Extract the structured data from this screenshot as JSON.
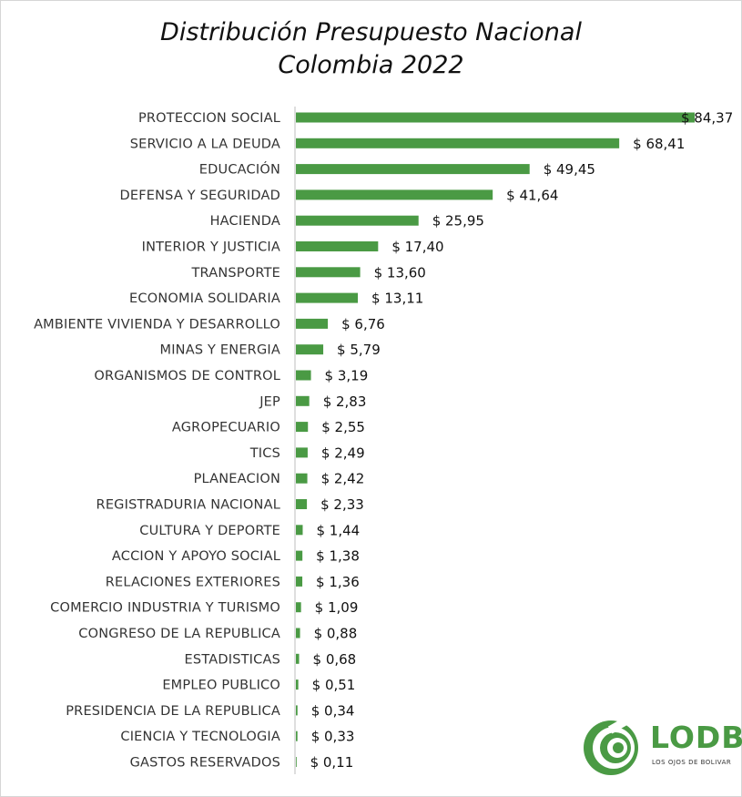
{
  "title_line1": "Distribución Presupuesto Nacional",
  "title_line2": "Colombia 2022",
  "logo": {
    "name": "LODB",
    "tagline": "LOS OJOS DE BOLIVAR",
    "color": "#4a9a44"
  },
  "chart_data": {
    "type": "bar",
    "orientation": "horizontal",
    "bar_color": "#4a9a44",
    "value_prefix": "$ ",
    "categories": [
      "PROTECCION SOCIAL",
      "SERVICIO A LA DEUDA",
      "EDUCACIÓN",
      "DEFENSA Y SEGURIDAD",
      "HACIENDA",
      "INTERIOR Y JUSTICIA",
      "TRANSPORTE",
      "ECONOMIA SOLIDARIA",
      "AMBIENTE VIVIENDA Y DESARROLLO",
      "MINAS Y ENERGIA",
      "ORGANISMOS DE CONTROL",
      "JEP",
      "AGROPECUARIO",
      "TICS",
      "PLANEACION",
      "REGISTRADURIA NACIONAL",
      "CULTURA Y DEPORTE",
      "ACCION Y APOYO SOCIAL",
      "RELACIONES EXTERIORES",
      "COMERCIO INDUSTRIA Y TURISMO",
      "CONGRESO DE LA REPUBLICA",
      "ESTADISTICAS",
      "EMPLEO PUBLICO",
      "PRESIDENCIA DE LA REPUBLICA",
      "CIENCIA Y TECNOLOGIA",
      "GASTOS RESERVADOS"
    ],
    "values": [
      84.37,
      68.41,
      49.45,
      41.64,
      25.95,
      17.4,
      13.6,
      13.11,
      6.76,
      5.79,
      3.19,
      2.83,
      2.55,
      2.49,
      2.42,
      2.33,
      1.44,
      1.38,
      1.36,
      1.09,
      0.88,
      0.68,
      0.51,
      0.34,
      0.33,
      0.11
    ],
    "value_labels": [
      "$ 84,37",
      "$ 68,41",
      "$ 49,45",
      "$ 41,64",
      "$ 25,95",
      "$ 17,40",
      "$ 13,60",
      "$ 13,11",
      "$ 6,76",
      "$ 5,79",
      "$ 3,19",
      "$ 2,83",
      "$ 2,55",
      "$ 2,49",
      "$ 2,42",
      "$ 2,33",
      "$ 1,44",
      "$ 1,38",
      "$ 1,36",
      "$ 1,09",
      "$ 0,88",
      "$ 0,68",
      "$ 0,51",
      "$ 0,34",
      "$ 0,33",
      "$ 0,11"
    ]
  }
}
